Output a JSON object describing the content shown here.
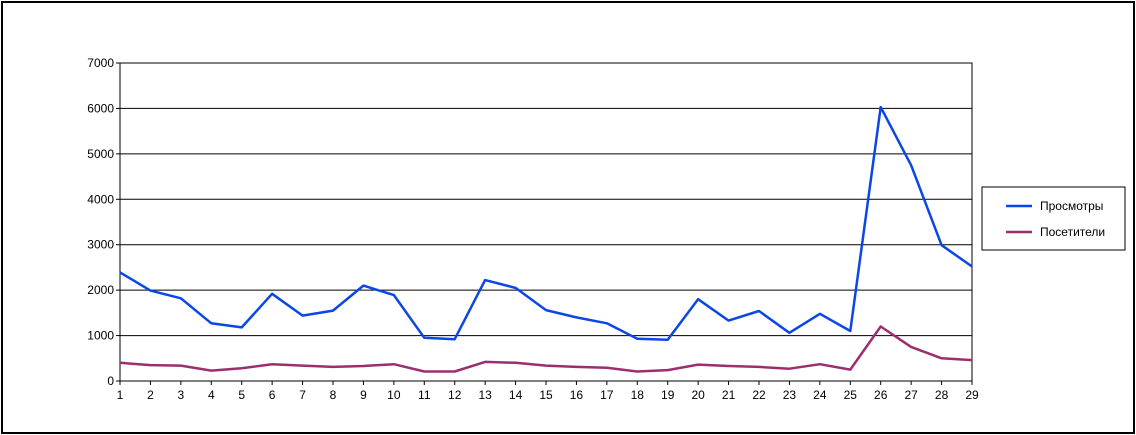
{
  "chart_data": {
    "type": "line",
    "title": "",
    "xlabel": "",
    "ylabel": "",
    "x": [
      1,
      2,
      3,
      4,
      5,
      6,
      7,
      8,
      9,
      10,
      11,
      12,
      13,
      14,
      15,
      16,
      17,
      18,
      19,
      20,
      21,
      22,
      23,
      24,
      25,
      26,
      27,
      28,
      29
    ],
    "ylim": [
      0,
      7000
    ],
    "yticks": [
      0,
      1000,
      2000,
      3000,
      4000,
      5000,
      6000,
      7000
    ],
    "grid": true,
    "legend": "right",
    "series": [
      {
        "name": "Просмотры",
        "color": "#0b47e8",
        "values": [
          2390,
          1990,
          1820,
          1270,
          1180,
          1920,
          1440,
          1550,
          2100,
          1890,
          950,
          920,
          2220,
          2050,
          1560,
          1400,
          1270,
          930,
          910,
          1800,
          1330,
          1540,
          1060,
          1480,
          1100,
          6030,
          4750,
          2990,
          2520
        ]
      },
      {
        "name": "Посетители",
        "color": "#9b2f6e",
        "values": [
          400,
          350,
          340,
          230,
          280,
          370,
          340,
          310,
          330,
          370,
          210,
          210,
          420,
          400,
          340,
          310,
          290,
          210,
          240,
          360,
          330,
          310,
          270,
          370,
          250,
          1200,
          750,
          500,
          460
        ]
      }
    ]
  }
}
